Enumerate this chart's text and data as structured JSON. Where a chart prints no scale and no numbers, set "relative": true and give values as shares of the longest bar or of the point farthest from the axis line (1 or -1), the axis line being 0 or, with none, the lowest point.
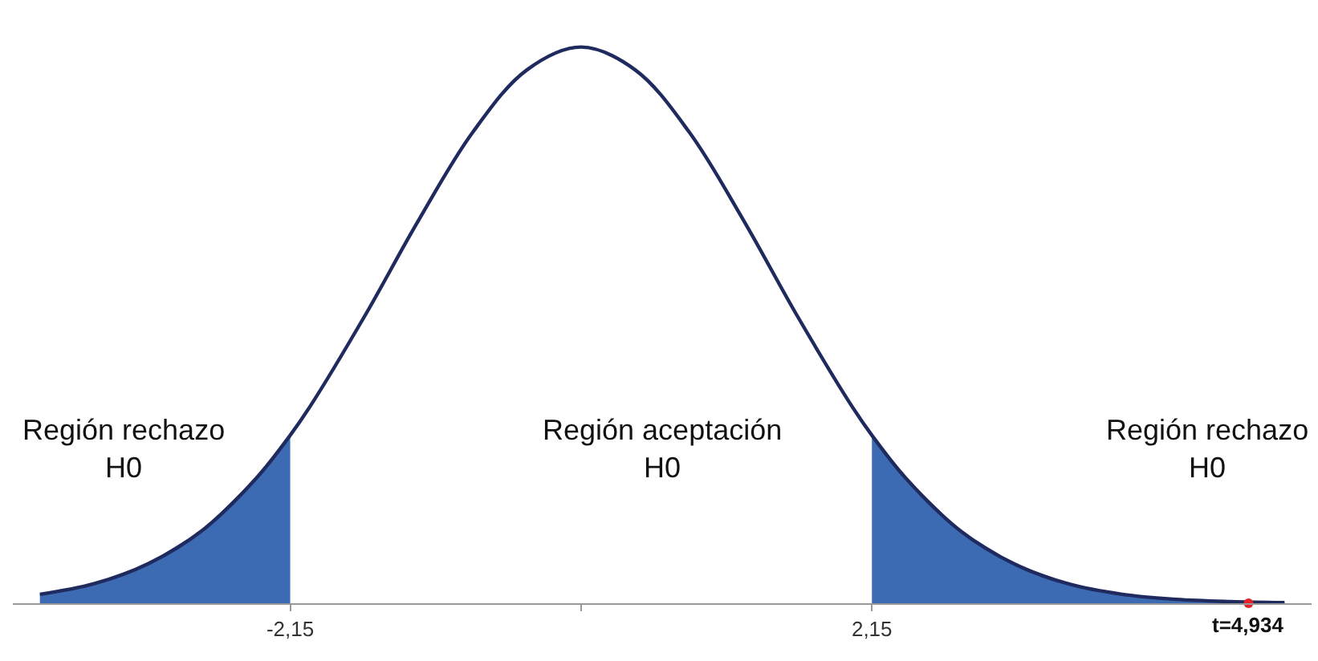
{
  "chart_data": {
    "type": "line",
    "relative": true,
    "x": [
      -4.0,
      -3.6,
      -3.2,
      -2.8,
      -2.4,
      -2.15,
      -2.0,
      -1.6,
      -1.2,
      -0.8,
      -0.4,
      0,
      0.4,
      0.8,
      1.2,
      1.6,
      2.0,
      2.15,
      2.4,
      2.8,
      3.2,
      3.6,
      4.0,
      4.4,
      4.8,
      5.2
    ],
    "series": [
      {
        "color": "#1f2a5e",
        "values": [
          0.016,
          0.035,
          0.071,
          0.131,
          0.225,
          0.302,
          0.355,
          0.516,
          0.689,
          0.847,
          0.959,
          1,
          0.959,
          0.847,
          0.689,
          0.516,
          0.355,
          0.302,
          0.225,
          0.131,
          0.071,
          0.035,
          0.016,
          0.007,
          0.003,
          0.001
        ]
      },
      {
        "type": "area",
        "color": "#3d6bb3",
        "x": [
          -4.0,
          -3.6,
          -3.2,
          -2.8,
          -2.4,
          -2.15
        ],
        "values": [
          0.016,
          0.035,
          0.071,
          0.131,
          0.225,
          0.302
        ]
      },
      {
        "type": "area",
        "color": "#3d6bb3",
        "x": [
          2.15,
          2.4,
          2.8,
          3.2,
          3.6,
          4.0,
          4.4,
          4.8,
          5.2
        ],
        "values": [
          0.302,
          0.225,
          0.131,
          0.071,
          0.035,
          0.016,
          0.007,
          0.003,
          0.001
        ]
      },
      {
        "type": "scatter",
        "color": "#e8202a",
        "marker": "circle",
        "x": [
          4.934
        ],
        "values": [
          0
        ]
      }
    ],
    "xlim": [
      -4.2,
      5.4
    ],
    "xticks": [
      {
        "value": -2.15,
        "label": "-2,15"
      },
      {
        "value": 0,
        "label": null
      },
      {
        "value": 2.15,
        "label": "2,15"
      }
    ],
    "annotations": [
      "Región rechazo\nH0",
      "Región aceptación\nH0",
      "Región rechazo\nH0",
      {
        "text": "t=4,934",
        "x": 4.934,
        "y": 0
      }
    ],
    "grid": false,
    "legend": false
  }
}
